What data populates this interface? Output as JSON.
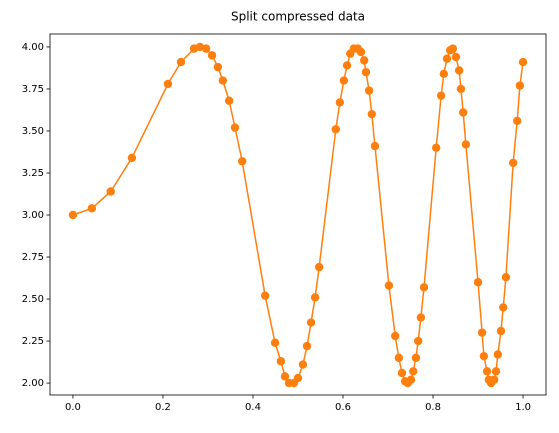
{
  "chart_data": {
    "type": "line",
    "title": "Split compressed data",
    "x": [
      0,
      0.042,
      0.084,
      0.131,
      0.211,
      0.24,
      0.269,
      0.282,
      0.296,
      0.309,
      0.322,
      0.333,
      0.347,
      0.36,
      0.376,
      0.427,
      0.449,
      0.462,
      0.471,
      0.48,
      0.491,
      0.5,
      0.511,
      0.52,
      0.529,
      0.538,
      0.547,
      0.584,
      0.593,
      0.602,
      0.609,
      0.616,
      0.624,
      0.633,
      0.64,
      0.647,
      0.651,
      0.658,
      0.664,
      0.671,
      0.702,
      0.716,
      0.724,
      0.731,
      0.738,
      0.744,
      0.751,
      0.756,
      0.762,
      0.767,
      0.773,
      0.78,
      0.807,
      0.818,
      0.824,
      0.831,
      0.838,
      0.844,
      0.851,
      0.858,
      0.862,
      0.867,
      0.873,
      0.9,
      0.909,
      0.913,
      0.92,
      0.924,
      0.929,
      0.936,
      0.94,
      0.944,
      0.951,
      0.956,
      0.962,
      0.978,
      0.987,
      0.993,
      1
    ],
    "series": [
      {
        "color": "#ff7f0e",
        "values": [
          3.0,
          3.04,
          3.14,
          3.34,
          3.78,
          3.91,
          3.99,
          4.0,
          3.99,
          3.95,
          3.88,
          3.8,
          3.68,
          3.52,
          3.32,
          2.52,
          2.24,
          2.13,
          2.04,
          2.0,
          2.0,
          2.03,
          2.11,
          2.22,
          2.36,
          2.51,
          2.69,
          3.51,
          3.67,
          3.8,
          3.89,
          3.96,
          3.99,
          3.99,
          3.97,
          3.92,
          3.85,
          3.74,
          3.6,
          3.41,
          2.58,
          2.28,
          2.15,
          2.06,
          2.01,
          2.0,
          2.02,
          2.07,
          2.15,
          2.25,
          2.39,
          2.57,
          3.4,
          3.71,
          3.84,
          3.93,
          3.98,
          3.99,
          3.94,
          3.86,
          3.75,
          3.61,
          3.42,
          2.6,
          2.3,
          2.16,
          2.07,
          2.02,
          2.0,
          2.02,
          2.07,
          2.17,
          2.31,
          2.45,
          2.63,
          3.31,
          3.56,
          3.77,
          3.91
        ]
      }
    ],
    "xlim": [
      -0.051,
      1.051
    ],
    "ylim": [
      1.929,
      4.077
    ],
    "xticks": [
      {
        "value": 0,
        "label": "0.0"
      },
      {
        "value": 0.2,
        "label": "0.2"
      },
      {
        "value": 0.4,
        "label": "0.4"
      },
      {
        "value": 0.6,
        "label": "0.6"
      },
      {
        "value": 0.8,
        "label": "0.8"
      },
      {
        "value": 1,
        "label": "1.0"
      }
    ],
    "yticks": [
      {
        "value": 2,
        "label": "2.00"
      },
      {
        "value": 2.25,
        "label": "2.25"
      },
      {
        "value": 2.5,
        "label": "2.50"
      },
      {
        "value": 2.75,
        "label": "2.75"
      },
      {
        "value": 3,
        "label": "3.00"
      },
      {
        "value": 3.25,
        "label": "3.25"
      },
      {
        "value": 3.5,
        "label": "3.50"
      },
      {
        "value": 3.75,
        "label": "3.75"
      },
      {
        "value": 4,
        "label": "4.00"
      }
    ],
    "markers": true
  }
}
